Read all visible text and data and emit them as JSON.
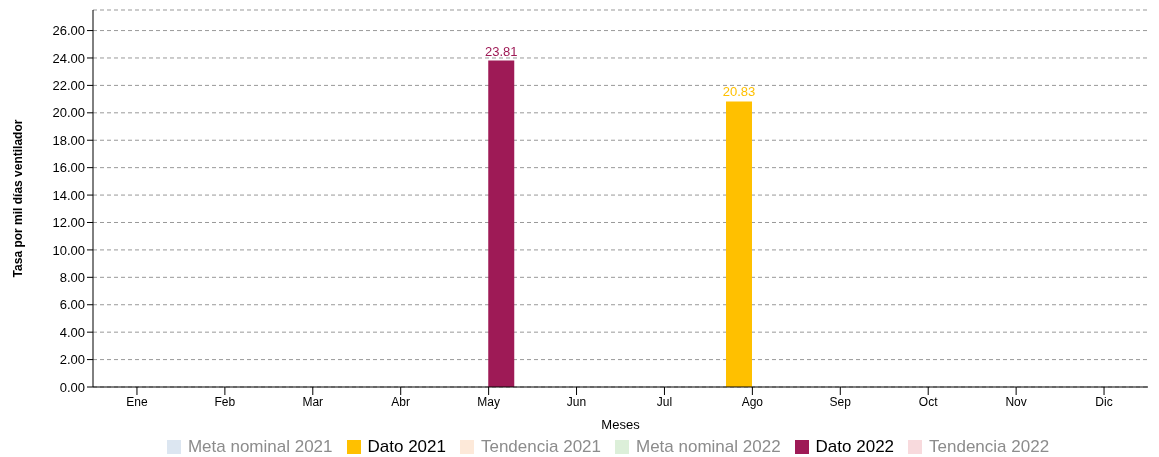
{
  "chart_data": {
    "type": "bar",
    "xlabel": "Meses",
    "ylabel": "Tasa por mil días ventilador",
    "categories": [
      "Ene",
      "Feb",
      "Mar",
      "Abr",
      "May",
      "Jun",
      "Jul",
      "Ago",
      "Sep",
      "Oct",
      "Nov",
      "Dic"
    ],
    "series": [
      {
        "name": "Meta nominal 2021",
        "type": "line",
        "color": "#dce6f1",
        "values": [
          null,
          null,
          null,
          null,
          null,
          null,
          null,
          null,
          null,
          null,
          null,
          null
        ]
      },
      {
        "name": "Dato 2021",
        "color": "#ffc000",
        "values": [
          null,
          null,
          null,
          null,
          null,
          null,
          null,
          20.83,
          null,
          null,
          null,
          null
        ]
      },
      {
        "name": "Tendencia 2021",
        "type": "line",
        "color": "#fde9d9",
        "values": [
          null,
          null,
          null,
          null,
          null,
          null,
          null,
          null,
          null,
          null,
          null,
          null
        ]
      },
      {
        "name": "Meta nominal 2022",
        "type": "line",
        "color": "#dcefd9",
        "values": [
          null,
          null,
          null,
          null,
          null,
          null,
          null,
          null,
          null,
          null,
          null,
          null
        ]
      },
      {
        "name": "Dato 2022",
        "color": "#9e1a56",
        "values": [
          null,
          null,
          null,
          null,
          23.81,
          null,
          null,
          null,
          null,
          null,
          null,
          null
        ]
      },
      {
        "name": "Tendencia 2022",
        "type": "line",
        "color": "#f8dadd",
        "values": [
          null,
          null,
          null,
          null,
          null,
          null,
          null,
          null,
          null,
          null,
          null,
          null
        ]
      }
    ],
    "ylim": [
      0,
      27.5
    ],
    "yticks": [
      {
        "value": 0,
        "label": "0.00"
      },
      {
        "value": 2,
        "label": "2.00"
      },
      {
        "value": 4,
        "label": "4.00"
      },
      {
        "value": 6,
        "label": "6.00"
      },
      {
        "value": 8,
        "label": "8.00"
      },
      {
        "value": 10,
        "label": "10.00"
      },
      {
        "value": 12,
        "label": "12.00"
      },
      {
        "value": 14,
        "label": "14.00"
      },
      {
        "value": 16,
        "label": "16.00"
      },
      {
        "value": 18,
        "label": "18.00"
      },
      {
        "value": 20,
        "label": "20.00"
      },
      {
        "value": 22,
        "label": "22.00"
      },
      {
        "value": 24,
        "label": "24.00"
      },
      {
        "value": 26,
        "label": "26.00"
      }
    ],
    "grid": "y",
    "legend": "bottom",
    "data_labels": true
  }
}
